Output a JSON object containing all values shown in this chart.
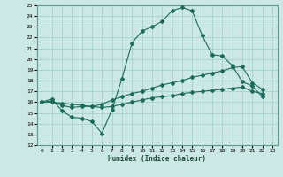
{
  "xlabel": "Humidex (Indice chaleur)",
  "background_color": "#cce8e4",
  "grid_color": "#a8d4cf",
  "line_color": "#1a6b5a",
  "xlim": [
    -0.5,
    23.5
  ],
  "ylim": [
    12,
    25
  ],
  "xticks": [
    0,
    1,
    2,
    3,
    4,
    5,
    6,
    7,
    8,
    9,
    10,
    11,
    12,
    13,
    14,
    15,
    16,
    17,
    18,
    19,
    20,
    21,
    22,
    23
  ],
  "yticks": [
    12,
    13,
    14,
    15,
    16,
    17,
    18,
    19,
    20,
    21,
    22,
    23,
    24,
    25
  ],
  "series": [
    {
      "x": [
        0,
        1,
        2,
        3,
        4,
        5,
        6,
        7,
        8,
        9,
        10,
        11,
        12,
        13,
        14,
        15,
        16,
        17,
        18,
        19,
        20,
        21,
        22
      ],
      "y": [
        16.0,
        16.3,
        15.2,
        14.6,
        14.5,
        14.2,
        13.1,
        15.3,
        18.2,
        21.5,
        22.6,
        23.0,
        23.5,
        24.5,
        24.8,
        24.5,
        22.2,
        20.4,
        20.3,
        19.4,
        17.9,
        17.5,
        16.5
      ]
    },
    {
      "x": [
        0,
        1,
        2,
        3,
        4,
        5,
        6,
        7,
        8,
        9,
        10,
        11,
        12,
        13,
        14,
        15,
        16,
        17,
        18,
        19,
        20,
        21,
        22
      ],
      "y": [
        16.0,
        16.1,
        15.7,
        15.5,
        15.6,
        15.6,
        15.8,
        16.2,
        16.5,
        16.8,
        17.0,
        17.3,
        17.6,
        17.8,
        18.0,
        18.3,
        18.5,
        18.7,
        18.9,
        19.2,
        19.3,
        17.8,
        17.2
      ]
    },
    {
      "x": [
        0,
        1,
        2,
        3,
        4,
        5,
        6,
        7,
        8,
        9,
        10,
        11,
        12,
        13,
        14,
        15,
        16,
        17,
        18,
        19,
        20,
        21,
        22
      ],
      "y": [
        16.0,
        16.0,
        15.9,
        15.8,
        15.7,
        15.6,
        15.5,
        15.6,
        15.8,
        16.0,
        16.2,
        16.4,
        16.5,
        16.6,
        16.8,
        16.9,
        17.0,
        17.1,
        17.2,
        17.3,
        17.4,
        17.0,
        16.8
      ]
    }
  ]
}
